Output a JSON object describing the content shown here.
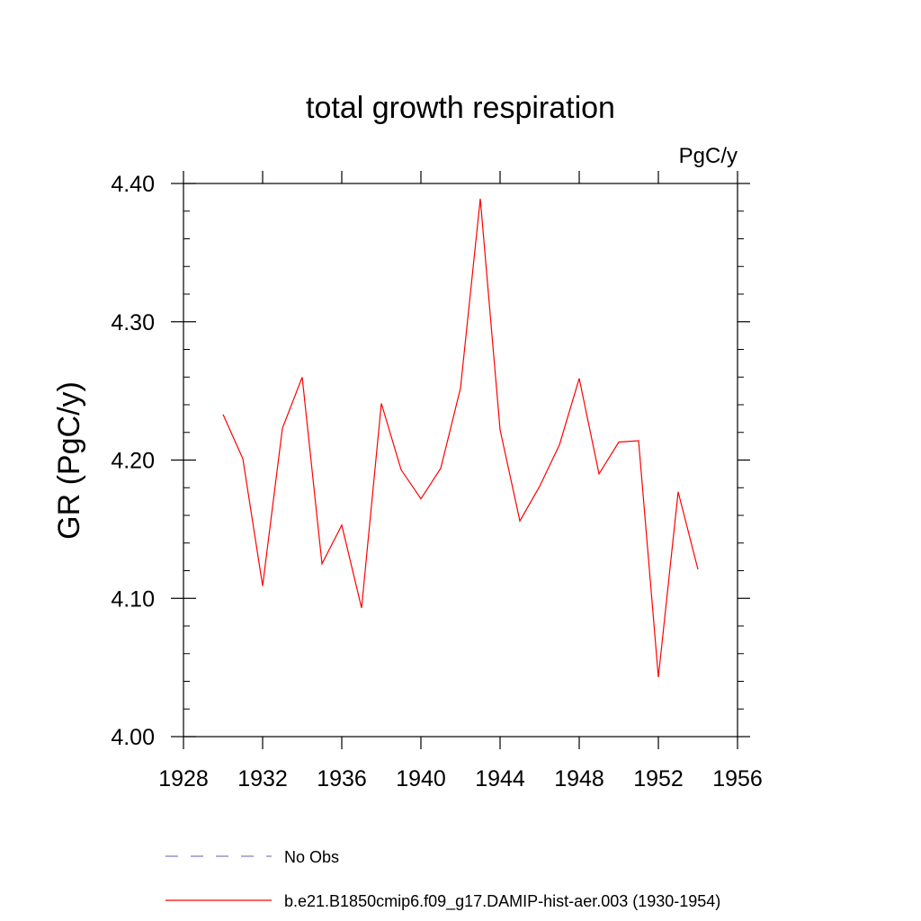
{
  "chart_data": {
    "type": "line",
    "title": "total growth respiration",
    "units": "PgC/y",
    "ylabel": "GR  (PgC/y)",
    "xlabel": "",
    "xlim": [
      1928,
      1956
    ],
    "ylim": [
      4.0,
      4.4
    ],
    "x_ticks": [
      1928,
      1932,
      1936,
      1940,
      1944,
      1948,
      1952,
      1956
    ],
    "y_ticks": [
      "4.00",
      "4.10",
      "4.20",
      "4.30",
      "4.40"
    ],
    "grid": false,
    "legend_position": "bottom",
    "series": [
      {
        "name": "No Obs",
        "style": "dashed",
        "color": "#7f7fbf",
        "x": [],
        "values": []
      },
      {
        "name": "b.e21.B1850cmip6.f09_g17.DAMIP-hist-aer.003 (1930-1954)",
        "style": "solid",
        "color": "#ff0000",
        "x": [
          1930,
          1931,
          1932,
          1933,
          1934,
          1935,
          1936,
          1937,
          1938,
          1939,
          1940,
          1941,
          1942,
          1943,
          1944,
          1945,
          1946,
          1947,
          1948,
          1949,
          1950,
          1951,
          1952,
          1953,
          1954
        ],
        "values": [
          4.233,
          4.201,
          4.109,
          4.223,
          4.26,
          4.125,
          4.153,
          4.093,
          4.241,
          4.193,
          4.172,
          4.194,
          4.252,
          4.389,
          4.222,
          4.156,
          4.181,
          4.211,
          4.259,
          4.19,
          4.213,
          4.214,
          4.043,
          4.177,
          4.121
        ]
      }
    ]
  }
}
